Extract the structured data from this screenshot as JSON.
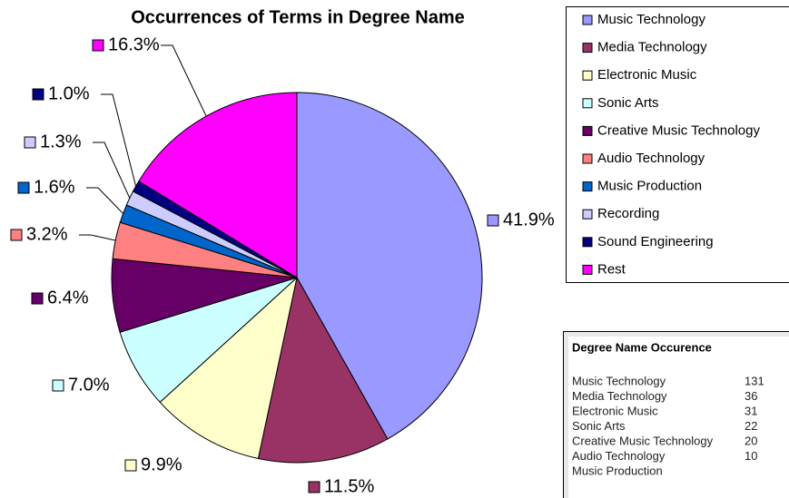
{
  "chart_data": {
    "type": "pie",
    "title": "Occurrences of Terms in Degree Name",
    "categories": [
      "Music Technology",
      "Media Technology",
      "Electronic Music",
      "Sonic Arts",
      "Creative Music Technology",
      "Audio Technology",
      "Music Production",
      "Recording",
      "Sound Engineering",
      "Rest"
    ],
    "values": [
      41.9,
      11.5,
      9.9,
      7.0,
      6.4,
      3.2,
      1.6,
      1.3,
      1.0,
      16.3
    ],
    "value_labels": [
      "41.9%",
      "11.5%",
      "9.9%",
      "7.0%",
      "6.4%",
      "3.2%",
      "1.6%",
      "1.3%",
      "1.0%",
      "16.3%"
    ],
    "colors": [
      "#9999ff",
      "#993366",
      "#ffffcc",
      "#ccffff",
      "#660066",
      "#ff8080",
      "#0066cc",
      "#ccccff",
      "#000080",
      "#ff00ff"
    ],
    "legend": "right"
  },
  "table": {
    "title": "Degree Name Occurence",
    "rows": [
      [
        "Music Technology",
        "131"
      ],
      [
        "Media Technology",
        "36"
      ],
      [
        "Electronic Music",
        "31"
      ],
      [
        "Sonic Arts",
        "22"
      ],
      [
        "Creative Music Technology",
        "20"
      ],
      [
        "Audio Technology",
        "10"
      ],
      [
        "Music Production"
      ]
    ]
  }
}
